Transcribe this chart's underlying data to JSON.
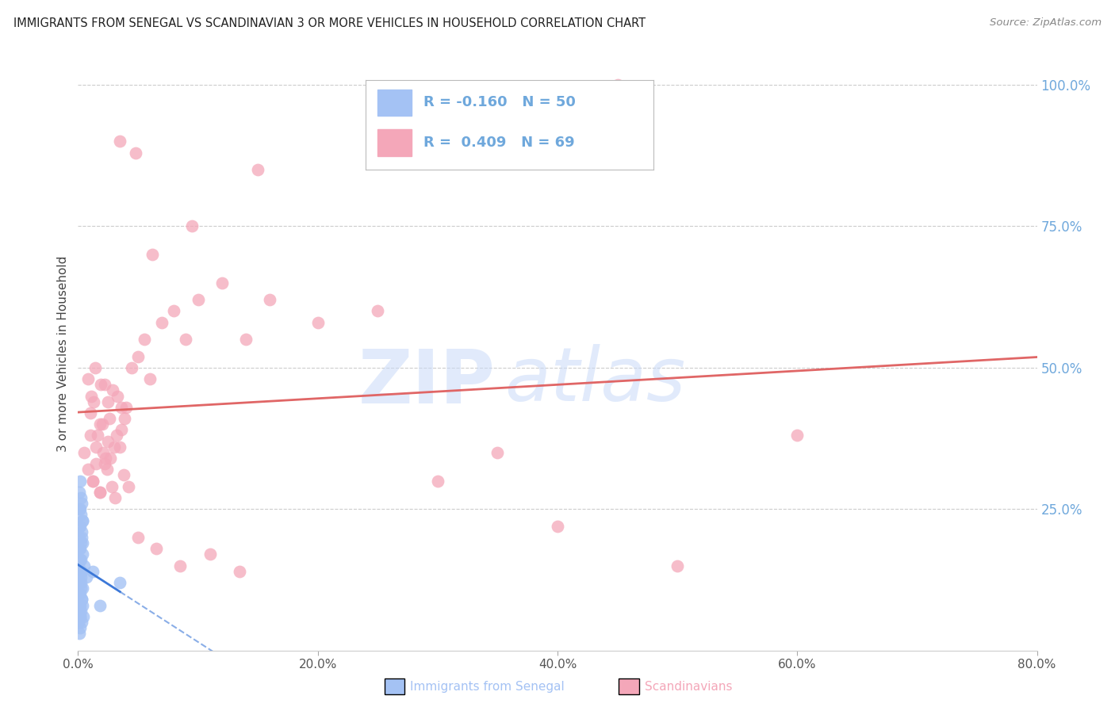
{
  "title": "IMMIGRANTS FROM SENEGAL VS SCANDINAVIAN 3 OR MORE VEHICLES IN HOUSEHOLD CORRELATION CHART",
  "source": "Source: ZipAtlas.com",
  "ylabel": "3 or more Vehicles in Household",
  "xlim": [
    0,
    80
  ],
  "ylim": [
    0,
    105
  ],
  "x_ticks": [
    0,
    20,
    40,
    60,
    80
  ],
  "x_ticklabels": [
    "0.0%",
    "20.0%",
    "40.0%",
    "60.0%",
    "80.0%"
  ],
  "y_ticks_right": [
    25,
    50,
    75,
    100
  ],
  "y_ticklabels_right": [
    "25.0%",
    "50.0%",
    "75.0%",
    "100.0%"
  ],
  "blue_scatter_color": "#a4c2f4",
  "pink_scatter_color": "#f4a7b9",
  "blue_line_color": "#3c78d8",
  "pink_line_color": "#e06666",
  "right_axis_color": "#6fa8dc",
  "watermark_color": "#c9daf8",
  "legend_text_blue": "R = -0.160   N = 50",
  "legend_text_pink": "R =  0.409   N = 69",
  "bottom_legend_blue": "Immigrants from Senegal",
  "bottom_legend_pink": "Scandinavians",
  "blue_x": [
    0.05,
    0.08,
    0.1,
    0.12,
    0.15,
    0.18,
    0.2,
    0.22,
    0.25,
    0.28,
    0.1,
    0.13,
    0.16,
    0.19,
    0.23,
    0.26,
    0.3,
    0.33,
    0.36,
    0.4,
    0.1,
    0.14,
    0.17,
    0.21,
    0.24,
    0.27,
    0.31,
    0.35,
    0.38,
    0.42,
    0.08,
    0.11,
    0.14,
    0.18,
    0.22,
    0.25,
    0.29,
    0.32,
    0.36,
    0.39,
    0.07,
    0.1,
    0.13,
    0.17,
    0.2,
    0.5,
    0.7,
    1.2,
    1.8,
    3.5
  ],
  "blue_y": [
    15,
    12,
    18,
    10,
    14,
    8,
    16,
    11,
    13,
    9,
    20,
    22,
    18,
    25,
    16,
    19,
    14,
    21,
    17,
    23,
    8,
    10,
    6,
    12,
    7,
    9,
    5,
    11,
    8,
    6,
    28,
    25,
    30,
    22,
    27,
    24,
    26,
    20,
    23,
    19,
    5,
    3,
    7,
    4,
    6,
    15,
    13,
    14,
    8,
    12
  ],
  "pink_x": [
    0.5,
    0.8,
    1.0,
    1.2,
    1.5,
    1.8,
    2.0,
    2.2,
    2.5,
    2.8,
    1.0,
    1.3,
    1.6,
    1.9,
    2.3,
    2.6,
    3.0,
    3.3,
    3.6,
    4.0,
    1.2,
    1.5,
    1.8,
    2.1,
    2.4,
    2.7,
    3.1,
    3.5,
    3.8,
    4.2,
    0.8,
    1.1,
    1.4,
    1.8,
    2.2,
    2.5,
    2.9,
    3.2,
    3.6,
    3.9,
    4.5,
    5.0,
    5.5,
    6.0,
    7.0,
    8.0,
    9.0,
    10.0,
    12.0,
    14.0,
    5.0,
    6.5,
    8.5,
    11.0,
    13.5,
    16.0,
    20.0,
    30.0,
    40.0,
    50.0,
    3.5,
    4.8,
    6.2,
    9.5,
    15.0,
    25.0,
    35.0,
    45.0,
    60.0
  ],
  "pink_y": [
    35,
    32,
    38,
    30,
    36,
    28,
    40,
    33,
    37,
    29,
    42,
    44,
    38,
    47,
    34,
    41,
    36,
    45,
    39,
    43,
    30,
    33,
    28,
    35,
    32,
    34,
    27,
    36,
    31,
    29,
    48,
    45,
    50,
    40,
    47,
    44,
    46,
    38,
    43,
    41,
    50,
    52,
    55,
    48,
    58,
    60,
    55,
    62,
    65,
    55,
    20,
    18,
    15,
    17,
    14,
    62,
    58,
    30,
    22,
    15,
    90,
    88,
    70,
    75,
    85,
    60,
    35,
    100,
    38
  ]
}
